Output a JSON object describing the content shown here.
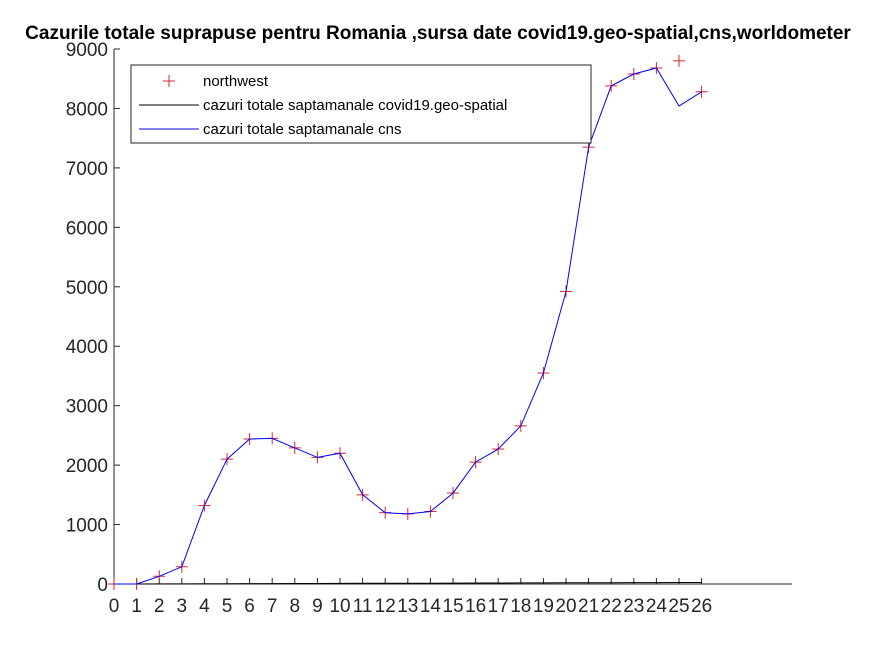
{
  "chart_data": {
    "type": "line",
    "title": "Cazurile totale suprapuse pentru Romania ,sursa date covid19.geo-spatial,cns,worldometer",
    "xlabel": "",
    "ylabel": "",
    "xlim": [
      0,
      30
    ],
    "ylim": [
      0,
      9000
    ],
    "xticks": [
      0,
      1,
      2,
      3,
      4,
      5,
      6,
      7,
      8,
      9,
      10,
      11,
      12,
      13,
      14,
      15,
      16,
      17,
      18,
      19,
      20,
      21,
      22,
      23,
      24,
      25,
      26
    ],
    "yticks": [
      0,
      1000,
      2000,
      3000,
      4000,
      5000,
      6000,
      7000,
      8000,
      9000
    ],
    "legend_position": "top-left",
    "grid": false,
    "series": [
      {
        "name": "northwest",
        "style": "marker-plus",
        "color": "#d62728",
        "x": [
          0,
          1,
          2,
          3,
          4,
          5,
          6,
          7,
          8,
          9,
          10,
          11,
          12,
          13,
          14,
          15,
          16,
          17,
          18,
          19,
          20,
          21,
          22,
          23,
          24,
          25,
          26
        ],
        "values": [
          0,
          0,
          130,
          290,
          1320,
          2100,
          2440,
          2450,
          2290,
          2130,
          2200,
          1500,
          1200,
          1180,
          1220,
          1530,
          2050,
          2270,
          2660,
          3550,
          4920,
          7350,
          8380,
          8580,
          8680,
          8800,
          8280
        ]
      },
      {
        "name": "cazuri totale saptamanale covid19.geo-spatial",
        "style": "line",
        "color": "#000000",
        "x": [
          0,
          1,
          2,
          3,
          4,
          5,
          6,
          7,
          8,
          9,
          10,
          11,
          12,
          13,
          14,
          15,
          16,
          17,
          18,
          19,
          20,
          21,
          22,
          23,
          24,
          25,
          26
        ],
        "values": [
          0,
          0,
          1,
          2,
          4,
          5,
          6,
          7,
          8,
          9,
          10,
          11,
          12,
          13,
          14,
          15,
          16,
          17,
          18,
          19,
          20,
          21,
          22,
          23,
          24,
          25,
          26
        ]
      },
      {
        "name": "cazuri totale saptamanale cns",
        "style": "line",
        "color": "#0000ff",
        "x": [
          0,
          1,
          2,
          3,
          4,
          5,
          6,
          7,
          8,
          9,
          10,
          11,
          12,
          13,
          14,
          15,
          16,
          17,
          18,
          19,
          20,
          21,
          22,
          23,
          24,
          25,
          26
        ],
        "values": [
          0,
          0,
          130,
          290,
          1320,
          2100,
          2440,
          2450,
          2290,
          2130,
          2200,
          1500,
          1200,
          1180,
          1220,
          1530,
          2050,
          2270,
          2660,
          3550,
          4920,
          7350,
          8380,
          8580,
          8680,
          8040,
          8280
        ]
      }
    ]
  }
}
